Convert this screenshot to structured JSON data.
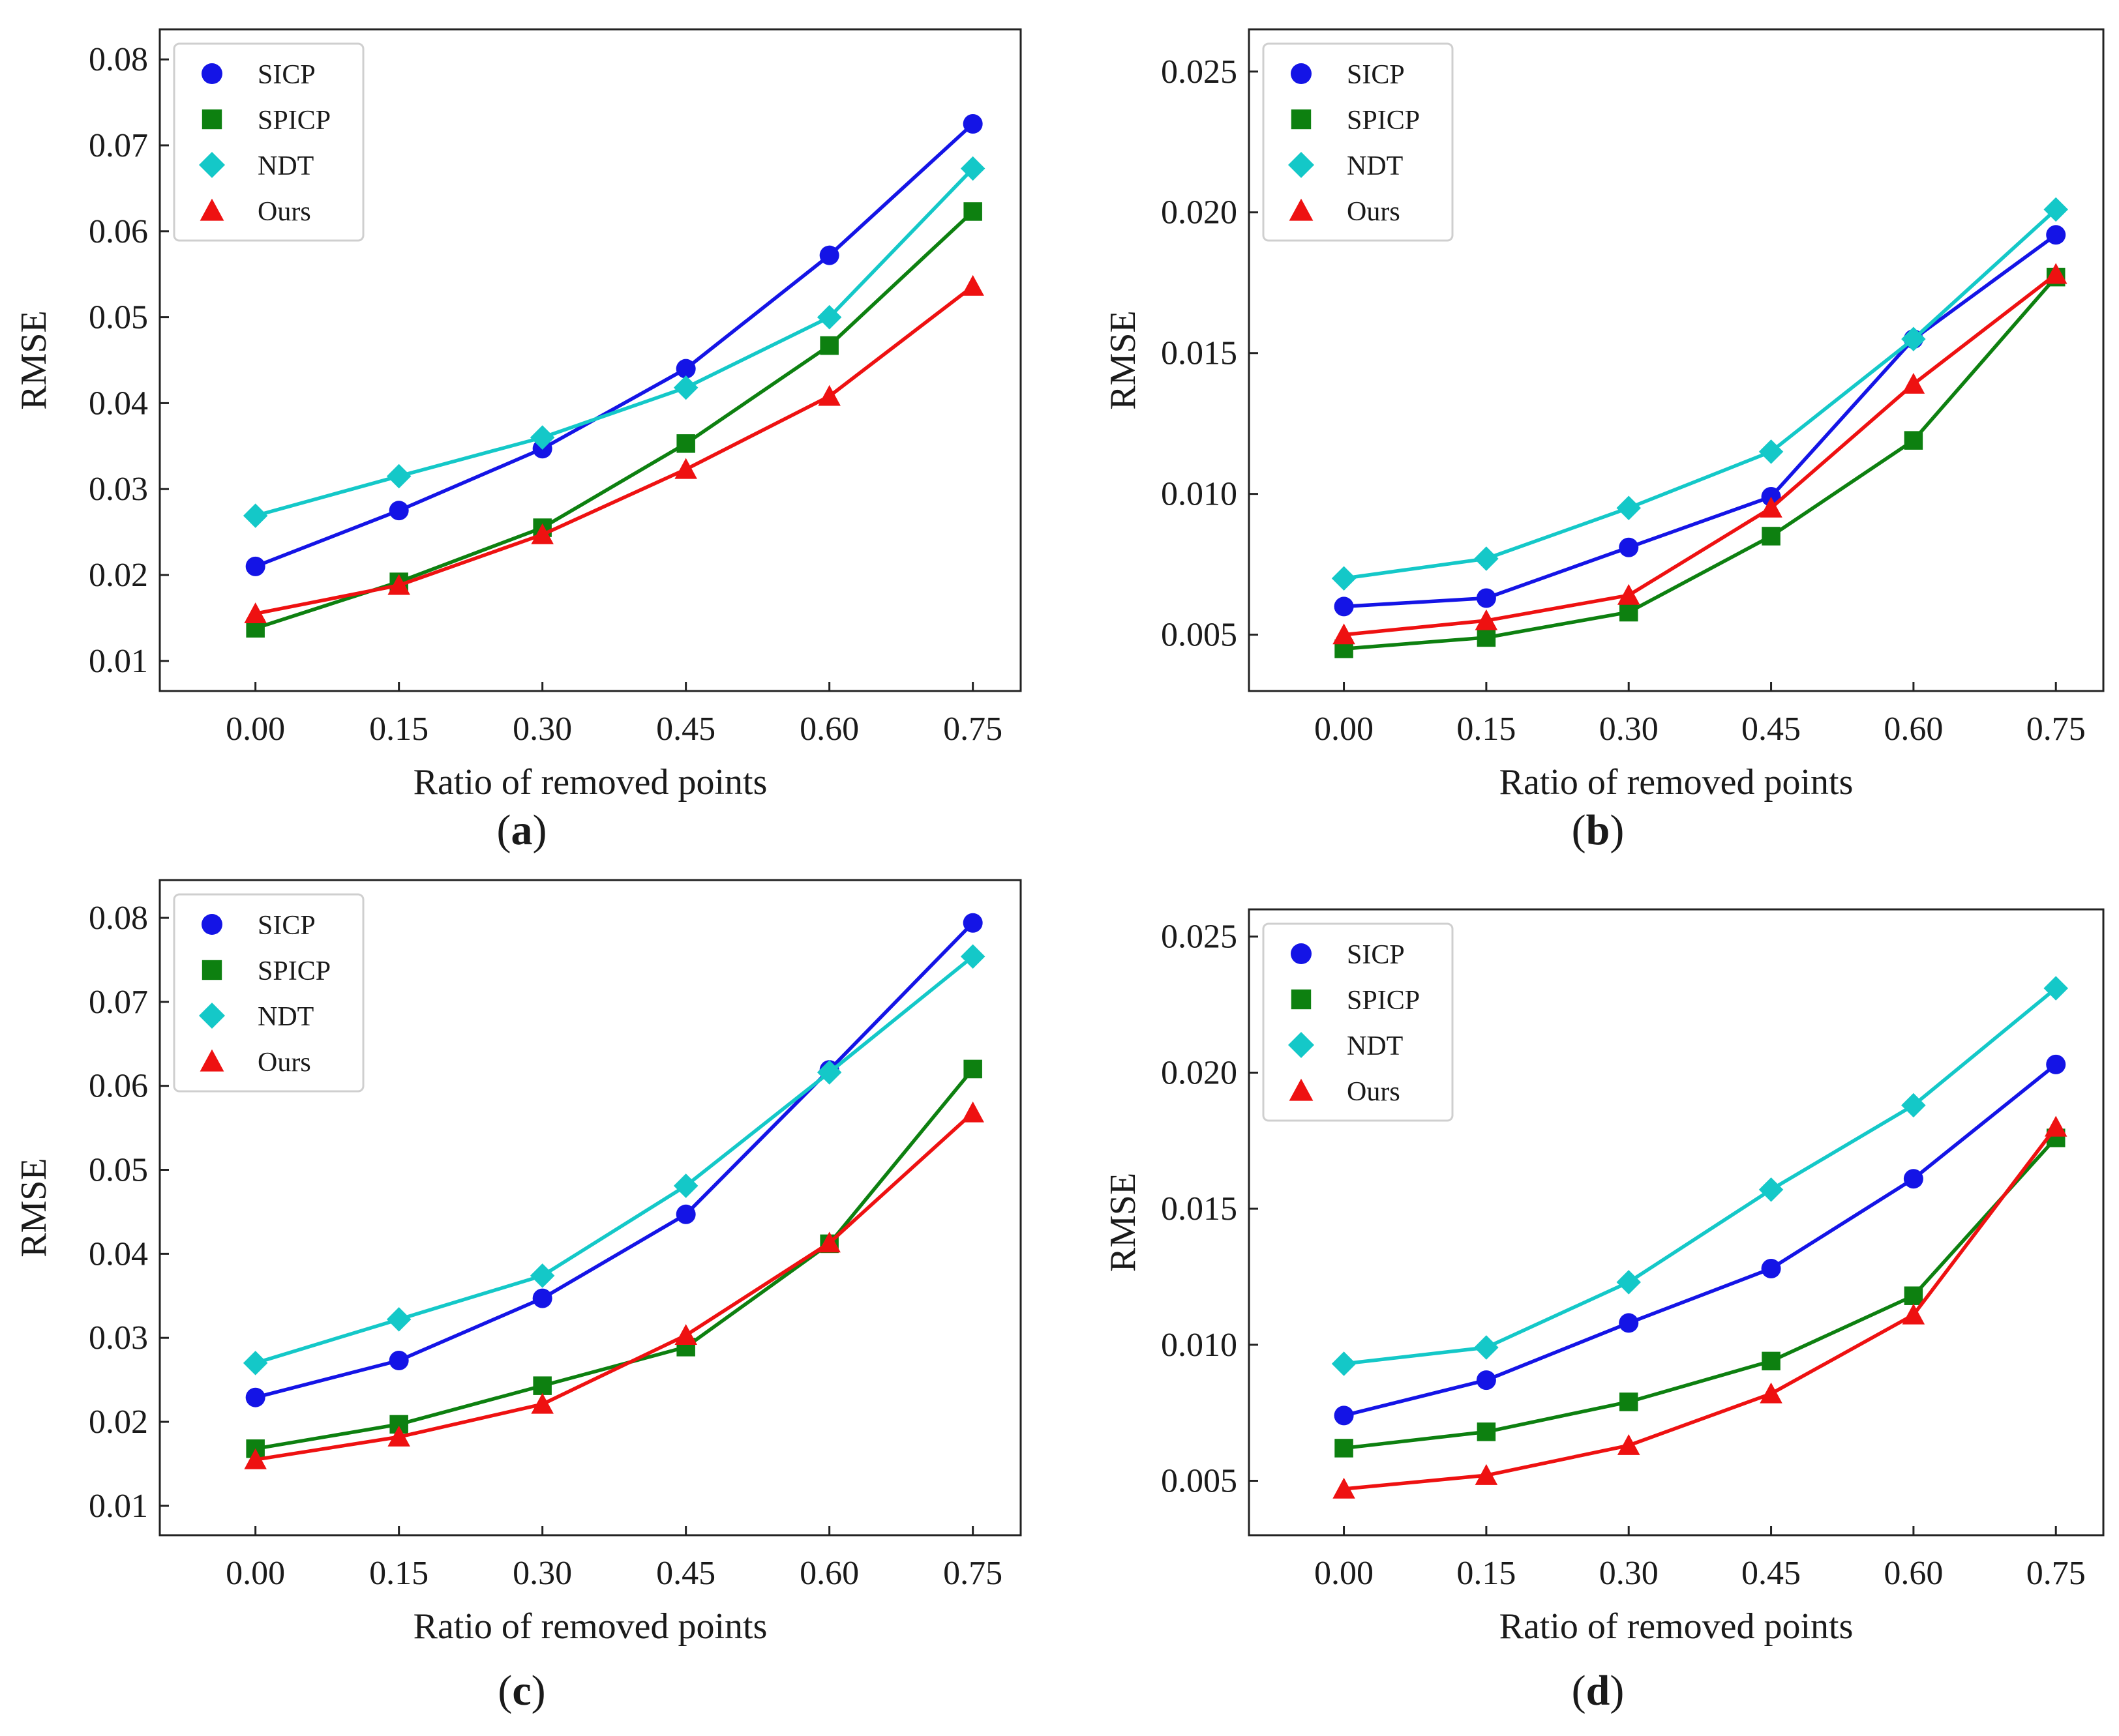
{
  "chart_data": [
    {
      "type": "line",
      "panel": "a",
      "caption": "(a)",
      "caption_letter": "a",
      "xlabel": "Ratio of removed points",
      "ylabel": "RMSE",
      "x": [
        0.0,
        0.15,
        0.3,
        0.45,
        0.6,
        0.75
      ],
      "xtick_labels": [
        "0.00",
        "0.15",
        "0.30",
        "0.45",
        "0.60",
        "0.75"
      ],
      "xlim": [
        -0.1,
        0.8
      ],
      "ylim": [
        0.0065,
        0.0835
      ],
      "yticks": [
        0.01,
        0.02,
        0.03,
        0.04,
        0.05,
        0.06,
        0.07,
        0.08
      ],
      "ytick_labels": [
        "0.01",
        "0.02",
        "0.03",
        "0.04",
        "0.05",
        "0.06",
        "0.07",
        "0.08"
      ],
      "legend_position": "top-left",
      "grid": false,
      "series": [
        {
          "name": "SICP",
          "color": "#1414e6",
          "marker": "circle",
          "values": [
            0.021,
            0.0275,
            0.0347,
            0.044,
            0.0572,
            0.0725
          ]
        },
        {
          "name": "SPICP",
          "color": "#0d8010",
          "marker": "square",
          "values": [
            0.0138,
            0.0192,
            0.0255,
            0.0353,
            0.0467,
            0.0623
          ]
        },
        {
          "name": "NDT",
          "color": "#14c8c8",
          "marker": "diamond",
          "values": [
            0.0269,
            0.0315,
            0.036,
            0.0418,
            0.05,
            0.0673
          ]
        },
        {
          "name": "Ours",
          "color": "#ee1111",
          "marker": "triangle",
          "values": [
            0.0155,
            0.0188,
            0.0247,
            0.0323,
            0.0408,
            0.0536
          ]
        }
      ]
    },
    {
      "type": "line",
      "panel": "b",
      "caption": "(b)",
      "caption_letter": "b",
      "xlabel": "Ratio of removed points",
      "ylabel": "RMSE",
      "x": [
        0.0,
        0.15,
        0.3,
        0.45,
        0.6,
        0.75
      ],
      "xtick_labels": [
        "0.00",
        "0.15",
        "0.30",
        "0.45",
        "0.60",
        "0.75"
      ],
      "xlim": [
        -0.1,
        0.8
      ],
      "ylim": [
        0.003,
        0.0265
      ],
      "yticks": [
        0.005,
        0.01,
        0.015,
        0.02,
        0.025
      ],
      "ytick_labels": [
        "0.005",
        "0.010",
        "0.015",
        "0.020",
        "0.025"
      ],
      "legend_position": "top-left",
      "grid": false,
      "series": [
        {
          "name": "SICP",
          "color": "#1414e6",
          "marker": "circle",
          "values": [
            0.006,
            0.0063,
            0.0081,
            0.0099,
            0.0155,
            0.0192
          ]
        },
        {
          "name": "SPICP",
          "color": "#0d8010",
          "marker": "square",
          "values": [
            0.0045,
            0.0049,
            0.0058,
            0.0085,
            0.0119,
            0.0177
          ]
        },
        {
          "name": "NDT",
          "color": "#14c8c8",
          "marker": "diamond",
          "values": [
            0.007,
            0.0077,
            0.0095,
            0.0115,
            0.0155,
            0.0201
          ]
        },
        {
          "name": "Ours",
          "color": "#ee1111",
          "marker": "triangle",
          "values": [
            0.005,
            0.0055,
            0.0064,
            0.0095,
            0.0139,
            0.0178
          ]
        }
      ]
    },
    {
      "type": "line",
      "panel": "c",
      "caption": "(c)",
      "caption_letter": "c",
      "xlabel": "Ratio of removed points",
      "ylabel": "RMSE",
      "x": [
        0.0,
        0.15,
        0.3,
        0.45,
        0.6,
        0.75
      ],
      "xtick_labels": [
        "0.00",
        "0.15",
        "0.30",
        "0.45",
        "0.60",
        "0.75"
      ],
      "xlim": [
        -0.1,
        0.8
      ],
      "ylim": [
        0.0065,
        0.0845
      ],
      "yticks": [
        0.01,
        0.02,
        0.03,
        0.04,
        0.05,
        0.06,
        0.07,
        0.08
      ],
      "ytick_labels": [
        "0.01",
        "0.02",
        "0.03",
        "0.04",
        "0.05",
        "0.06",
        "0.07",
        "0.08"
      ],
      "legend_position": "top-left",
      "grid": false,
      "series": [
        {
          "name": "SICP",
          "color": "#1414e6",
          "marker": "circle",
          "values": [
            0.0229,
            0.0273,
            0.0347,
            0.0447,
            0.0619,
            0.0794
          ]
        },
        {
          "name": "SPICP",
          "color": "#0d8010",
          "marker": "square",
          "values": [
            0.0168,
            0.0197,
            0.0243,
            0.0289,
            0.0412,
            0.062
          ]
        },
        {
          "name": "NDT",
          "color": "#14c8c8",
          "marker": "diamond",
          "values": [
            0.027,
            0.0322,
            0.0374,
            0.0481,
            0.0616,
            0.0754
          ]
        },
        {
          "name": "Ours",
          "color": "#ee1111",
          "marker": "triangle",
          "values": [
            0.0155,
            0.0182,
            0.0221,
            0.0303,
            0.0413,
            0.0568
          ]
        }
      ]
    },
    {
      "type": "line",
      "panel": "d",
      "caption": "(d)",
      "caption_letter": "d",
      "xlabel": "Ratio of removed points",
      "ylabel": "RMSE",
      "x": [
        0.0,
        0.15,
        0.3,
        0.45,
        0.6,
        0.75
      ],
      "xtick_labels": [
        "0.00",
        "0.15",
        "0.30",
        "0.45",
        "0.60",
        "0.75"
      ],
      "xlim": [
        -0.1,
        0.8
      ],
      "ylim": [
        0.003,
        0.026
      ],
      "yticks": [
        0.005,
        0.01,
        0.015,
        0.02,
        0.025
      ],
      "ytick_labels": [
        "0.005",
        "0.010",
        "0.015",
        "0.020",
        "0.025"
      ],
      "legend_position": "top-left",
      "grid": false,
      "series": [
        {
          "name": "SICP",
          "color": "#1414e6",
          "marker": "circle",
          "values": [
            0.0074,
            0.0087,
            0.0108,
            0.0128,
            0.0161,
            0.0203
          ]
        },
        {
          "name": "SPICP",
          "color": "#0d8010",
          "marker": "square",
          "values": [
            0.0062,
            0.0068,
            0.0079,
            0.0094,
            0.0118,
            0.0176
          ]
        },
        {
          "name": "NDT",
          "color": "#14c8c8",
          "marker": "diamond",
          "values": [
            0.0093,
            0.0099,
            0.0123,
            0.0157,
            0.0188,
            0.0231
          ]
        },
        {
          "name": "Ours",
          "color": "#ee1111",
          "marker": "triangle",
          "values": [
            0.0047,
            0.0052,
            0.0063,
            0.0082,
            0.0111,
            0.018
          ]
        }
      ]
    }
  ]
}
